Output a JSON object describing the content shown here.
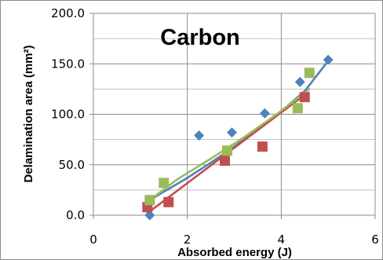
{
  "chart_data": {
    "type": "scatter",
    "title": "Carbon",
    "xlabel": "Absorbed energy (J)",
    "ylabel": "Delamination area (mm²)",
    "xlim": [
      0,
      6
    ],
    "ylim": [
      0,
      200
    ],
    "x_ticks": [
      "0",
      "2",
      "4",
      "6"
    ],
    "y_ticks": [
      "0.0",
      "50.0",
      "100.0",
      "150.0",
      "200.0"
    ],
    "grid": true,
    "series": [
      {
        "color": "#4f81bd",
        "marker": "diamond",
        "points": [
          [
            1.2,
            0
          ],
          [
            2.25,
            79
          ],
          [
            2.95,
            82
          ],
          [
            3.65,
            101
          ],
          [
            4.4,
            132
          ],
          [
            5.0,
            154
          ]
        ],
        "trendline": [
          [
            1.2,
            15
          ],
          [
            1.6,
            26
          ],
          [
            2.0,
            37
          ],
          [
            2.5,
            52
          ],
          [
            3.0,
            68
          ],
          [
            3.5,
            85
          ],
          [
            4.0,
            103
          ],
          [
            4.5,
            123
          ],
          [
            5.0,
            153
          ]
        ]
      },
      {
        "color": "#c0504d",
        "marker": "square",
        "points": [
          [
            1.15,
            8
          ],
          [
            1.6,
            13
          ],
          [
            2.8,
            54
          ],
          [
            3.6,
            68
          ],
          [
            4.5,
            117
          ]
        ],
        "trendline": [
          [
            1.15,
            2
          ],
          [
            4.55,
            121
          ]
        ]
      },
      {
        "color": "#9bbb59",
        "marker": "square",
        "points": [
          [
            1.2,
            15
          ],
          [
            1.5,
            32
          ],
          [
            2.85,
            64
          ],
          [
            4.35,
            106
          ],
          [
            4.6,
            141
          ]
        ],
        "trendline": [
          [
            1.2,
            15
          ],
          [
            1.8,
            36
          ],
          [
            2.5,
            56
          ],
          [
            3.2,
            77
          ],
          [
            3.9,
            100
          ],
          [
            4.6,
            125
          ]
        ]
      }
    ]
  }
}
